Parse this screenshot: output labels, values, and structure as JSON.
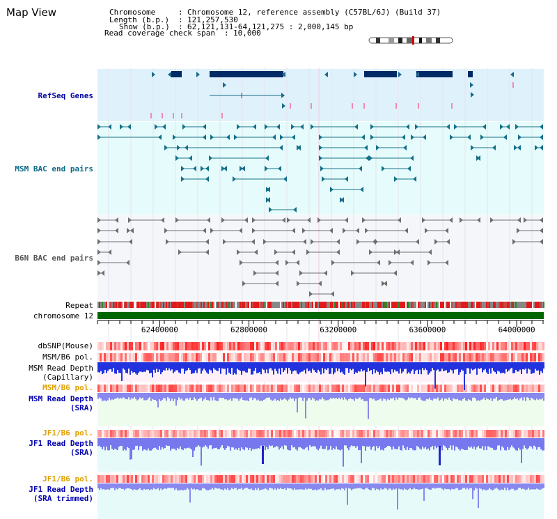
{
  "title": "Map View",
  "info": {
    "chromosome_label": "Chromosome",
    "chromosome_value": "Chromosome 12, reference assembly (C57BL/6J) (Build 37)",
    "length_label": "Length (b.p.)",
    "length_value": "121,257,530",
    "show_label": "Show (b.p.)",
    "show_value": "62,121,131-64,121,275 : 2,000,145 bp",
    "coverage_label": "Read coverage check span",
    "coverage_value": "10,000"
  },
  "tracks": {
    "refseq": "RefSeq Genes",
    "msm_bac": "MSM BAC end pairs",
    "b6n_bac": "B6N BAC end pairs",
    "repeat": "Repeat",
    "chromosome": "chromosome 12",
    "dbsnp": "dbSNP(Mouse)",
    "msm_b6_pol_1": "MSM/B6 pol.",
    "msm_read_depth_cap_1": "MSM Read Depth",
    "msm_read_depth_cap_2": "(Capillary)",
    "msm_b6_pol_2": "MSM/B6 pol.",
    "msm_read_depth_sra_1": "MSM Read Depth",
    "msm_read_depth_sra_2": "(SRA)",
    "jf1_b6_pol_1": "JF1/B6 pol.",
    "jf1_read_depth_sra_1": "JF1 Read Depth",
    "jf1_read_depth_sra_2": "(SRA)",
    "jf1_b6_pol_2": "JF1/B6 pol.",
    "jf1_read_depth_trim_1": "JF1 Read Depth",
    "jf1_read_depth_trim_2": "(SRA trimmed)"
  },
  "axis": {
    "ticks": [
      "62400000",
      "62800000",
      "63200000",
      "63600000",
      "64000000"
    ],
    "tick_values": [
      62400000,
      62800000,
      63200000,
      63600000,
      64000000
    ],
    "start": 62121131,
    "end": 64121275
  },
  "colors": {
    "refseq_bg": "#dff2fb",
    "msm_bac_bg": "#e6fbfb",
    "b6n_bg": "#f4f6fa",
    "gene": "#002a66",
    "msm_pair": "#15708a",
    "b6n_pair": "#6e6e6e",
    "chromosome": "#006600",
    "label_blue": "#0000a0",
    "label_teal": "#0d6b88",
    "label_grey": "#555555",
    "label_orange": "#e0a000",
    "label_navy": "#0000b0"
  }
}
